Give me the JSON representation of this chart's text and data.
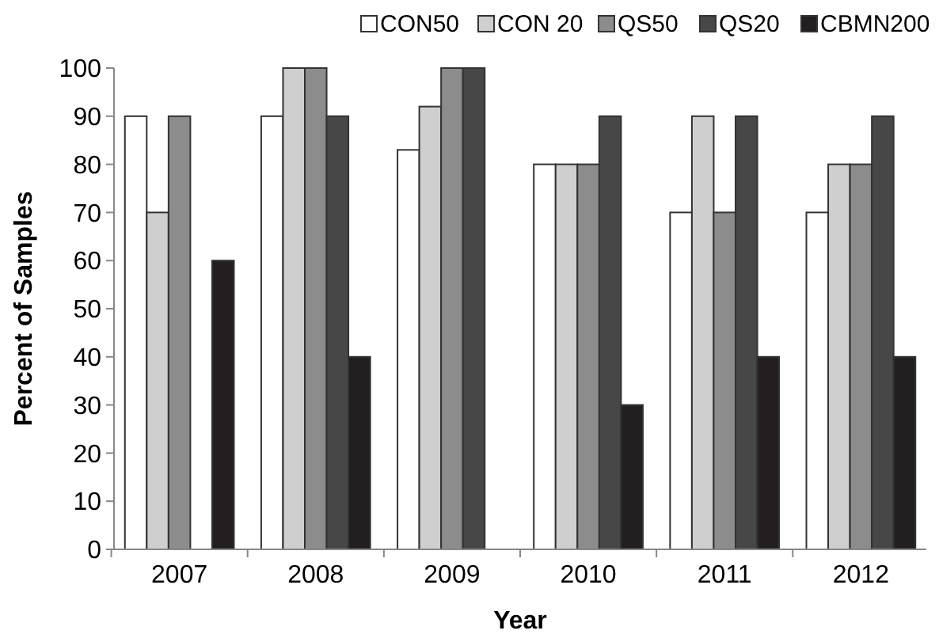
{
  "chart_data": {
    "type": "bar",
    "xlabel": "Year",
    "ylabel": "Percent of Samples",
    "categories": [
      "2007",
      "2008",
      "2009",
      "2010",
      "2011",
      "2012"
    ],
    "series": [
      {
        "name": "CON50",
        "color": "#ffffff",
        "values": [
          90,
          90,
          83,
          80,
          70,
          70
        ]
      },
      {
        "name": "CON 20",
        "color": "#cfcfcf",
        "values": [
          70,
          100,
          92,
          80,
          90,
          80
        ]
      },
      {
        "name": "QS50",
        "color": "#8c8c8c",
        "values": [
          90,
          100,
          100,
          80,
          70,
          80
        ]
      },
      {
        "name": "QS20",
        "color": "#474747",
        "values": [
          null,
          90,
          100,
          90,
          90,
          90
        ]
      },
      {
        "name": "CBMN200",
        "color": "#231f20",
        "values": [
          60,
          40,
          null,
          30,
          40,
          40
        ]
      }
    ],
    "ylim": [
      0,
      100
    ],
    "yticks": [
      0,
      10,
      20,
      30,
      40,
      50,
      60,
      70,
      80,
      90,
      100
    ],
    "grid": false,
    "legend": "top"
  }
}
